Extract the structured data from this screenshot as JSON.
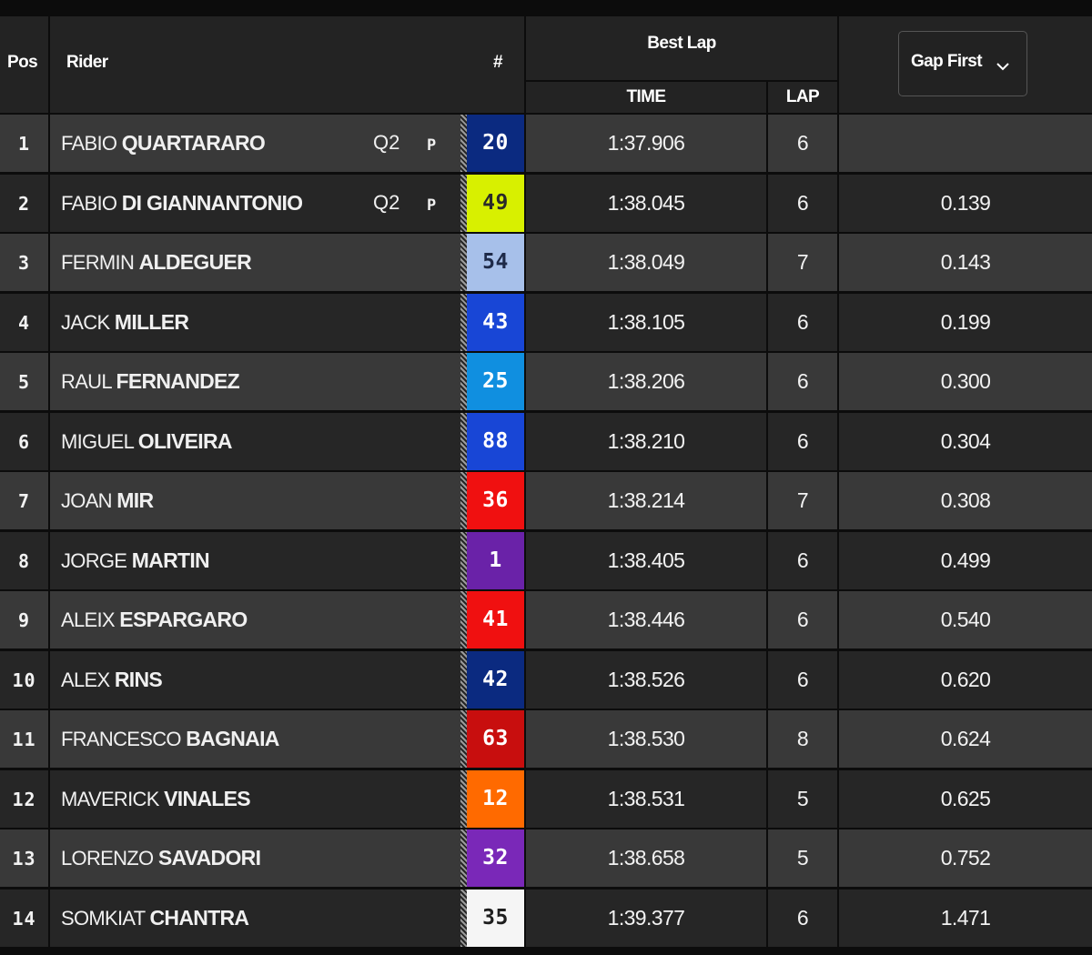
{
  "header": {
    "pos": "Pos",
    "rider": "Rider",
    "number": "#",
    "best_lap": "Best Lap",
    "time": "TIME",
    "lap": "LAP",
    "gap_sort": "Gap First"
  },
  "rows": [
    {
      "pos": "1",
      "first": "FABIO",
      "last": "QUARTARARO",
      "q": "Q2",
      "flag": "P",
      "num": "20",
      "num_bg": "#0b2a80",
      "num_fg": "#ffffff",
      "time": "1:37.906",
      "lap": "6",
      "gap": ""
    },
    {
      "pos": "2",
      "first": "FABIO",
      "last": "DI GIANNANTONIO",
      "q": "Q2",
      "flag": "P",
      "num": "49",
      "num_bg": "#d8f000",
      "num_fg": "#2a2a2a",
      "time": "1:38.045",
      "lap": "6",
      "gap": "0.139"
    },
    {
      "pos": "3",
      "first": "FERMIN",
      "last": "ALDEGUER",
      "q": "",
      "flag": "",
      "num": "54",
      "num_bg": "#a7c0ea",
      "num_fg": "#1e2a48",
      "time": "1:38.049",
      "lap": "7",
      "gap": "0.143"
    },
    {
      "pos": "4",
      "first": "JACK",
      "last": "MILLER",
      "q": "",
      "flag": "",
      "num": "43",
      "num_bg": "#1846d6",
      "num_fg": "#ffffff",
      "time": "1:38.105",
      "lap": "6",
      "gap": "0.199"
    },
    {
      "pos": "5",
      "first": "RAUL",
      "last": "FERNANDEZ",
      "q": "",
      "flag": "",
      "num": "25",
      "num_bg": "#108fe0",
      "num_fg": "#ffffff",
      "time": "1:38.206",
      "lap": "6",
      "gap": "0.300"
    },
    {
      "pos": "6",
      "first": "MIGUEL",
      "last": "OLIVEIRA",
      "q": "",
      "flag": "",
      "num": "88",
      "num_bg": "#1846d6",
      "num_fg": "#ffffff",
      "time": "1:38.210",
      "lap": "6",
      "gap": "0.304"
    },
    {
      "pos": "7",
      "first": "JOAN",
      "last": "MIR",
      "q": "",
      "flag": "",
      "num": "36",
      "num_bg": "#f01010",
      "num_fg": "#ffffff",
      "time": "1:38.214",
      "lap": "7",
      "gap": "0.308"
    },
    {
      "pos": "8",
      "first": "JORGE",
      "last": "MARTIN",
      "q": "",
      "flag": "",
      "num": "1",
      "num_bg": "#6a22a8",
      "num_fg": "#ffffff",
      "time": "1:38.405",
      "lap": "6",
      "gap": "0.499"
    },
    {
      "pos": "9",
      "first": "ALEIX",
      "last": "ESPARGARO",
      "q": "",
      "flag": "",
      "num": "41",
      "num_bg": "#f01010",
      "num_fg": "#ffffff",
      "time": "1:38.446",
      "lap": "6",
      "gap": "0.540"
    },
    {
      "pos": "10",
      "first": "ALEX",
      "last": "RINS",
      "q": "",
      "flag": "",
      "num": "42",
      "num_bg": "#0b2a80",
      "num_fg": "#ffffff",
      "time": "1:38.526",
      "lap": "6",
      "gap": "0.620"
    },
    {
      "pos": "11",
      "first": "FRANCESCO",
      "last": "BAGNAIA",
      "q": "",
      "flag": "",
      "num": "63",
      "num_bg": "#c80e0e",
      "num_fg": "#ffffff",
      "time": "1:38.530",
      "lap": "8",
      "gap": "0.624"
    },
    {
      "pos": "12",
      "first": "MAVERICK",
      "last": "VINALES",
      "q": "",
      "flag": "",
      "num": "12",
      "num_bg": "#ff6a00",
      "num_fg": "#ffffff",
      "time": "1:38.531",
      "lap": "5",
      "gap": "0.625"
    },
    {
      "pos": "13",
      "first": "LORENZO",
      "last": "SAVADORI",
      "q": "",
      "flag": "",
      "num": "32",
      "num_bg": "#7a28b8",
      "num_fg": "#ffffff",
      "time": "1:38.658",
      "lap": "5",
      "gap": "0.752"
    },
    {
      "pos": "14",
      "first": "SOMKIAT",
      "last": "CHANTRA",
      "q": "",
      "flag": "",
      "num": "35",
      "num_bg": "#f5f5f5",
      "num_fg": "#1e1e1e",
      "time": "1:39.377",
      "lap": "6",
      "gap": "1.471"
    }
  ],
  "colors": {
    "row_light": "#393939",
    "row_dark": "#262626",
    "header_bg": "#232323",
    "page_bg": "#0c0c0c"
  },
  "icons": {
    "sort": "chevron-down-icon"
  }
}
